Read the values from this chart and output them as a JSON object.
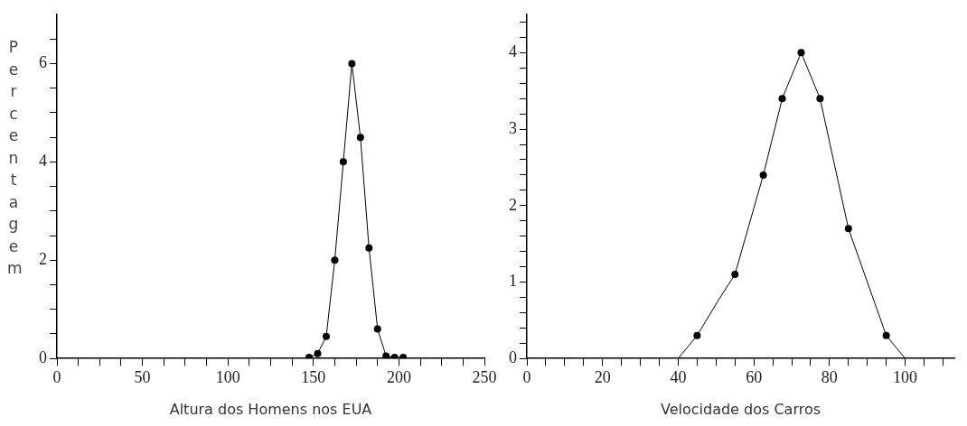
{
  "chart_data": [
    {
      "type": "line",
      "xlabel": "Altura dos Homens nos EUA",
      "ylabel": "Percentagem",
      "marker": "circle",
      "grid": false,
      "legend": false,
      "x": [
        147.5,
        152.5,
        157.5,
        162.5,
        167.5,
        172.5,
        177.5,
        182.5,
        187.5,
        192.5,
        197.5,
        202.5
      ],
      "series": [
        {
          "color": "#000000",
          "values": [
            0.02,
            0.1,
            0.45,
            2,
            4,
            6,
            4.5,
            2.25,
            0.6,
            0.05,
            0.02,
            0.02
          ]
        }
      ],
      "xlim": [
        0,
        250
      ],
      "xticks": [
        0,
        {
          "value": 12.5,
          "label": null
        },
        {
          "value": 25,
          "label": null
        },
        {
          "value": 37.5,
          "label": null
        },
        50,
        {
          "value": 62.5,
          "label": null
        },
        {
          "value": 75,
          "label": null
        },
        {
          "value": 87.5,
          "label": null
        },
        100,
        {
          "value": 112.5,
          "label": null
        },
        {
          "value": 125,
          "label": null
        },
        {
          "value": 137.5,
          "label": null
        },
        150,
        {
          "value": 162.5,
          "label": null
        },
        {
          "value": 175,
          "label": null
        },
        {
          "value": 187.5,
          "label": null
        },
        200,
        {
          "value": 212.5,
          "label": null
        },
        {
          "value": 225,
          "label": null
        },
        {
          "value": 237.5,
          "label": null
        },
        250
      ],
      "ylim": [
        0,
        7
      ],
      "yticks": [
        0,
        {
          "value": 0.5,
          "label": null
        },
        {
          "value": 1,
          "label": null
        },
        {
          "value": 1.5,
          "label": null
        },
        2,
        {
          "value": 2.5,
          "label": null
        },
        {
          "value": 3,
          "label": null
        },
        {
          "value": 3.5,
          "label": null
        },
        4,
        {
          "value": 4.5,
          "label": null
        },
        {
          "value": 5,
          "label": null
        },
        {
          "value": 5.5,
          "label": null
        },
        6,
        {
          "value": 6.5,
          "label": null
        }
      ]
    },
    {
      "type": "line",
      "xlabel": "Velocidade dos Carros",
      "grid": false,
      "legend": false,
      "series": [
        {
          "marker": "none",
          "color": "#000000",
          "x": [
            40,
            45,
            50.6,
            55,
            62.5,
            67.5,
            72.5,
            77.5,
            85,
            95,
            100
          ],
          "values": [
            0,
            0.3,
            0.76,
            1.1,
            2.4,
            3.4,
            4,
            3.4,
            1.7,
            0.3,
            0
          ]
        },
        {
          "type": "scatter",
          "marker": "circle",
          "color": "#000000",
          "x": [
            45,
            55,
            62.5,
            67.5,
            72.5,
            77.5,
            85,
            95
          ],
          "values": [
            0.3,
            1.1,
            2.4,
            3.4,
            4,
            3.4,
            1.7,
            0.3
          ]
        }
      ],
      "xlim": [
        0,
        113
      ],
      "xticks": [
        0,
        {
          "value": 5,
          "label": null
        },
        {
          "value": 10,
          "label": null
        },
        {
          "value": 15,
          "label": null
        },
        20,
        {
          "value": 25,
          "label": null
        },
        {
          "value": 30,
          "label": null
        },
        {
          "value": 35,
          "label": null
        },
        40,
        {
          "value": 45,
          "label": null
        },
        {
          "value": 50,
          "label": null
        },
        {
          "value": 55,
          "label": null
        },
        60,
        {
          "value": 65,
          "label": null
        },
        {
          "value": 70,
          "label": null
        },
        {
          "value": 75,
          "label": null
        },
        80,
        {
          "value": 85,
          "label": null
        },
        {
          "value": 90,
          "label": null
        },
        {
          "value": 95,
          "label": null
        },
        100,
        {
          "value": 105,
          "label": null
        },
        {
          "value": 110,
          "label": null
        }
      ],
      "ylim": [
        0,
        4.5
      ],
      "yticks": [
        0,
        {
          "value": 0.2,
          "label": null
        },
        {
          "value": 0.4,
          "label": null
        },
        {
          "value": 0.6,
          "label": null
        },
        {
          "value": 0.8,
          "label": null
        },
        1,
        {
          "value": 1.2,
          "label": null
        },
        {
          "value": 1.4,
          "label": null
        },
        {
          "value": 1.6,
          "label": null
        },
        {
          "value": 1.8,
          "label": null
        },
        2,
        {
          "value": 2.2,
          "label": null
        },
        {
          "value": 2.4,
          "label": null
        },
        {
          "value": 2.6,
          "label": null
        },
        {
          "value": 2.8,
          "label": null
        },
        3,
        {
          "value": 3.2,
          "label": null
        },
        {
          "value": 3.4,
          "label": null
        },
        {
          "value": 3.6,
          "label": null
        },
        {
          "value": 3.8,
          "label": null
        },
        4,
        {
          "value": 4.2,
          "label": null
        },
        {
          "value": 4.4,
          "label": null
        }
      ]
    }
  ]
}
